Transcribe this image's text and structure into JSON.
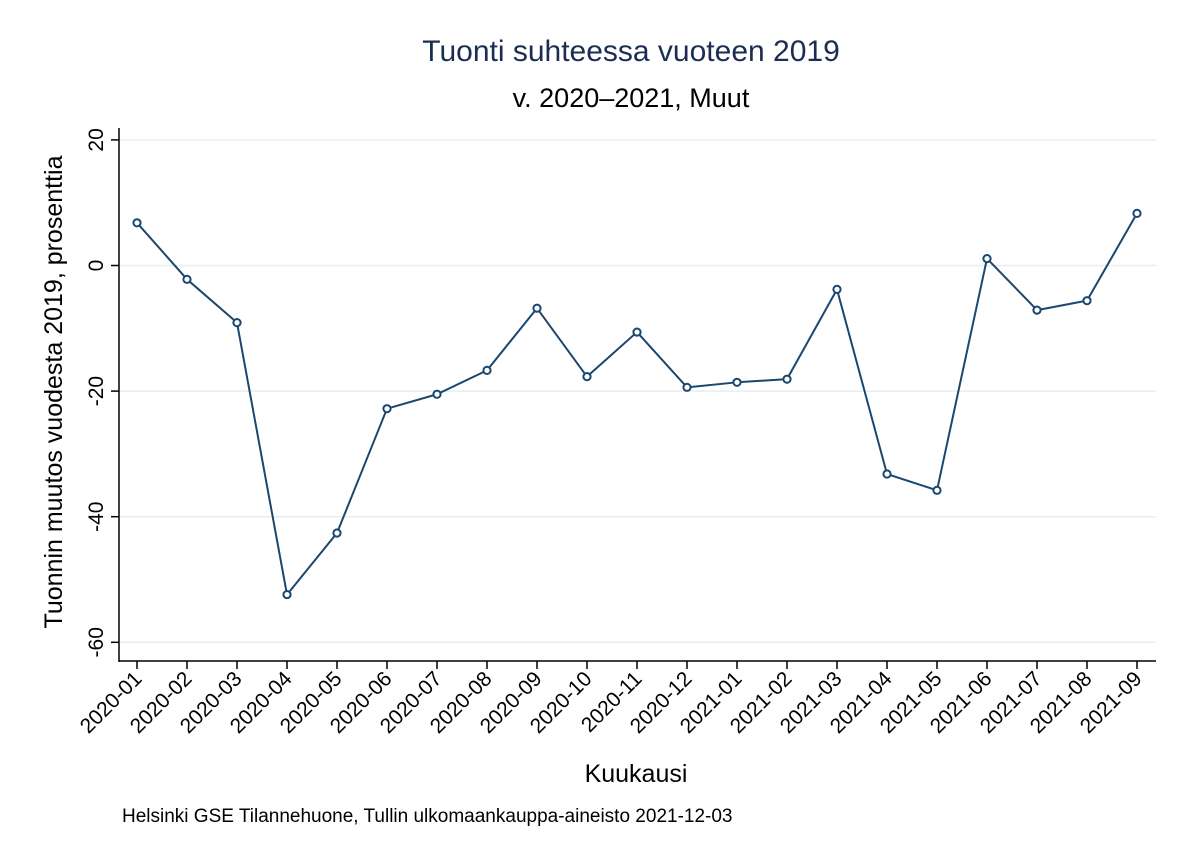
{
  "colors": {
    "title": "#1a2d52",
    "series": "#1a476f",
    "grid": "#e6eef0",
    "axis": "#000000"
  },
  "chart_data": {
    "type": "line",
    "title": "Tuonti suhteessa vuoteen 2019",
    "subtitle": "v. 2020–2021, Muut",
    "xlabel": "Kuukausi",
    "ylabel": "Tuonnin muutos vuodesta 2019, prosenttia",
    "note": "Helsinki GSE Tilannehuone, Tullin ulkomaankauppa-aineisto 2021-12-03",
    "categories": [
      "2020-01",
      "2020-02",
      "2020-03",
      "2020-04",
      "2020-05",
      "2020-06",
      "2020-07",
      "2020-08",
      "2020-09",
      "2020-10",
      "2020-11",
      "2020-12",
      "2021-01",
      "2021-02",
      "2021-03",
      "2021-04",
      "2021-05",
      "2021-06",
      "2021-07",
      "2021-08",
      "2021-09"
    ],
    "series": [
      {
        "values": [
          6.8,
          -2.2,
          -9.1,
          -52.4,
          -42.6,
          -22.8,
          -20.5,
          -16.7,
          -6.8,
          -17.7,
          -10.6,
          -19.4,
          -18.6,
          -18.1,
          -3.8,
          -33.2,
          -35.8,
          1.1,
          -7.1,
          -5.6,
          8.3
        ],
        "marker": "hollow-circle"
      }
    ],
    "yticks": [
      20,
      0,
      -20,
      -40,
      -60
    ],
    "ylim": [
      -63,
      23
    ],
    "grid": true,
    "legend": "none"
  }
}
